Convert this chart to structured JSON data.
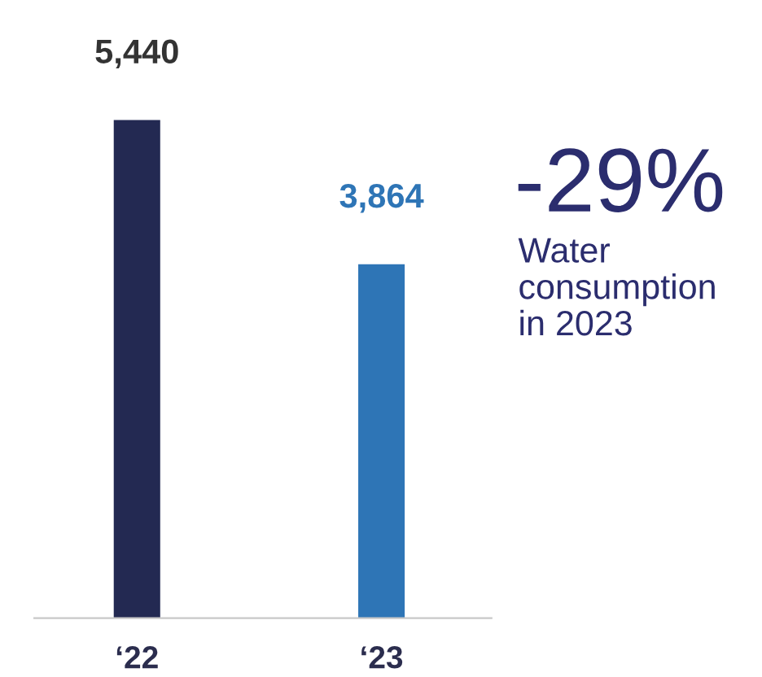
{
  "chart_data": {
    "type": "bar",
    "categories": [
      "‘22",
      "‘23"
    ],
    "values": [
      5440,
      3864
    ],
    "colors": [
      "#232952",
      "#2e75b6"
    ],
    "value_labels": [
      "5,440",
      "3,864"
    ],
    "annotations": [
      "-29%",
      "Water\nconsumption\nin 2023"
    ],
    "grid": false,
    "legend": false
  }
}
